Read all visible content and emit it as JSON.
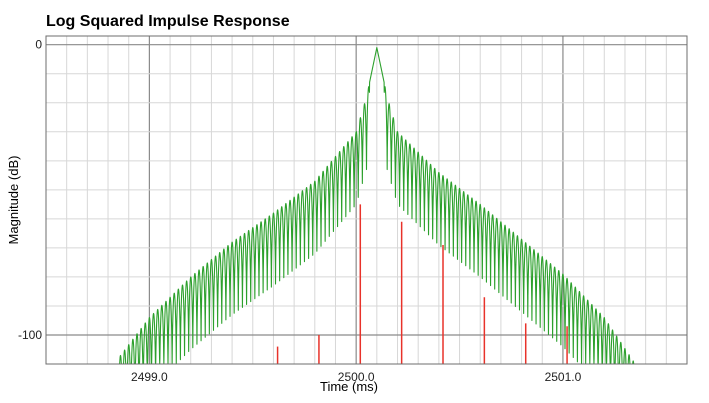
{
  "chart_data": {
    "type": "line",
    "title": "Log Squared Impulse Response",
    "xlabel": "Time (ms)",
    "ylabel": "Magnitude (dB)",
    "xlim": [
      2498.5,
      2501.6
    ],
    "ylim": [
      -110,
      3
    ],
    "x_ticks": [
      {
        "value": 2499.0,
        "label": "2499.0"
      },
      {
        "value": 2500.0,
        "label": "2500.0"
      },
      {
        "value": 2501.0,
        "label": "2501.0"
      }
    ],
    "y_ticks": [
      {
        "value": 0,
        "label": "0"
      },
      {
        "value": -100,
        "label": "-100"
      }
    ],
    "grid": true,
    "series": [
      {
        "kind": "oscillating-envelope",
        "color": "#2ca02c",
        "peak_x": 2500.1,
        "peak_y": -1,
        "envelope": [
          {
            "x": 2498.85,
            "y": -108
          },
          {
            "x": 2499.0,
            "y": -94
          },
          {
            "x": 2499.2,
            "y": -80
          },
          {
            "x": 2499.4,
            "y": -68
          },
          {
            "x": 2499.6,
            "y": -58
          },
          {
            "x": 2499.8,
            "y": -47
          },
          {
            "x": 2500.0,
            "y": -30
          },
          {
            "x": 2500.05,
            "y": -18
          },
          {
            "x": 2500.1,
            "y": -1
          },
          {
            "x": 2500.15,
            "y": -18
          },
          {
            "x": 2500.2,
            "y": -30
          },
          {
            "x": 2500.4,
            "y": -44
          },
          {
            "x": 2500.6,
            "y": -55
          },
          {
            "x": 2500.8,
            "y": -67
          },
          {
            "x": 2501.0,
            "y": -79
          },
          {
            "x": 2501.2,
            "y": -94
          },
          {
            "x": 2501.35,
            "y": -110
          }
        ],
        "ripple_period_ms": 0.02,
        "ripple_depth_db": 25
      },
      {
        "kind": "stems",
        "color": "#e8322a",
        "points": [
          {
            "x": 2499.22,
            "y": -110
          },
          {
            "x": 2499.42,
            "y": -110
          },
          {
            "x": 2499.62,
            "y": -104
          },
          {
            "x": 2499.82,
            "y": -100
          },
          {
            "x": 2500.02,
            "y": -55
          },
          {
            "x": 2500.22,
            "y": -61
          },
          {
            "x": 2500.42,
            "y": -69
          },
          {
            "x": 2500.62,
            "y": -87
          },
          {
            "x": 2500.82,
            "y": -96
          },
          {
            "x": 2501.02,
            "y": -97
          }
        ]
      }
    ]
  }
}
